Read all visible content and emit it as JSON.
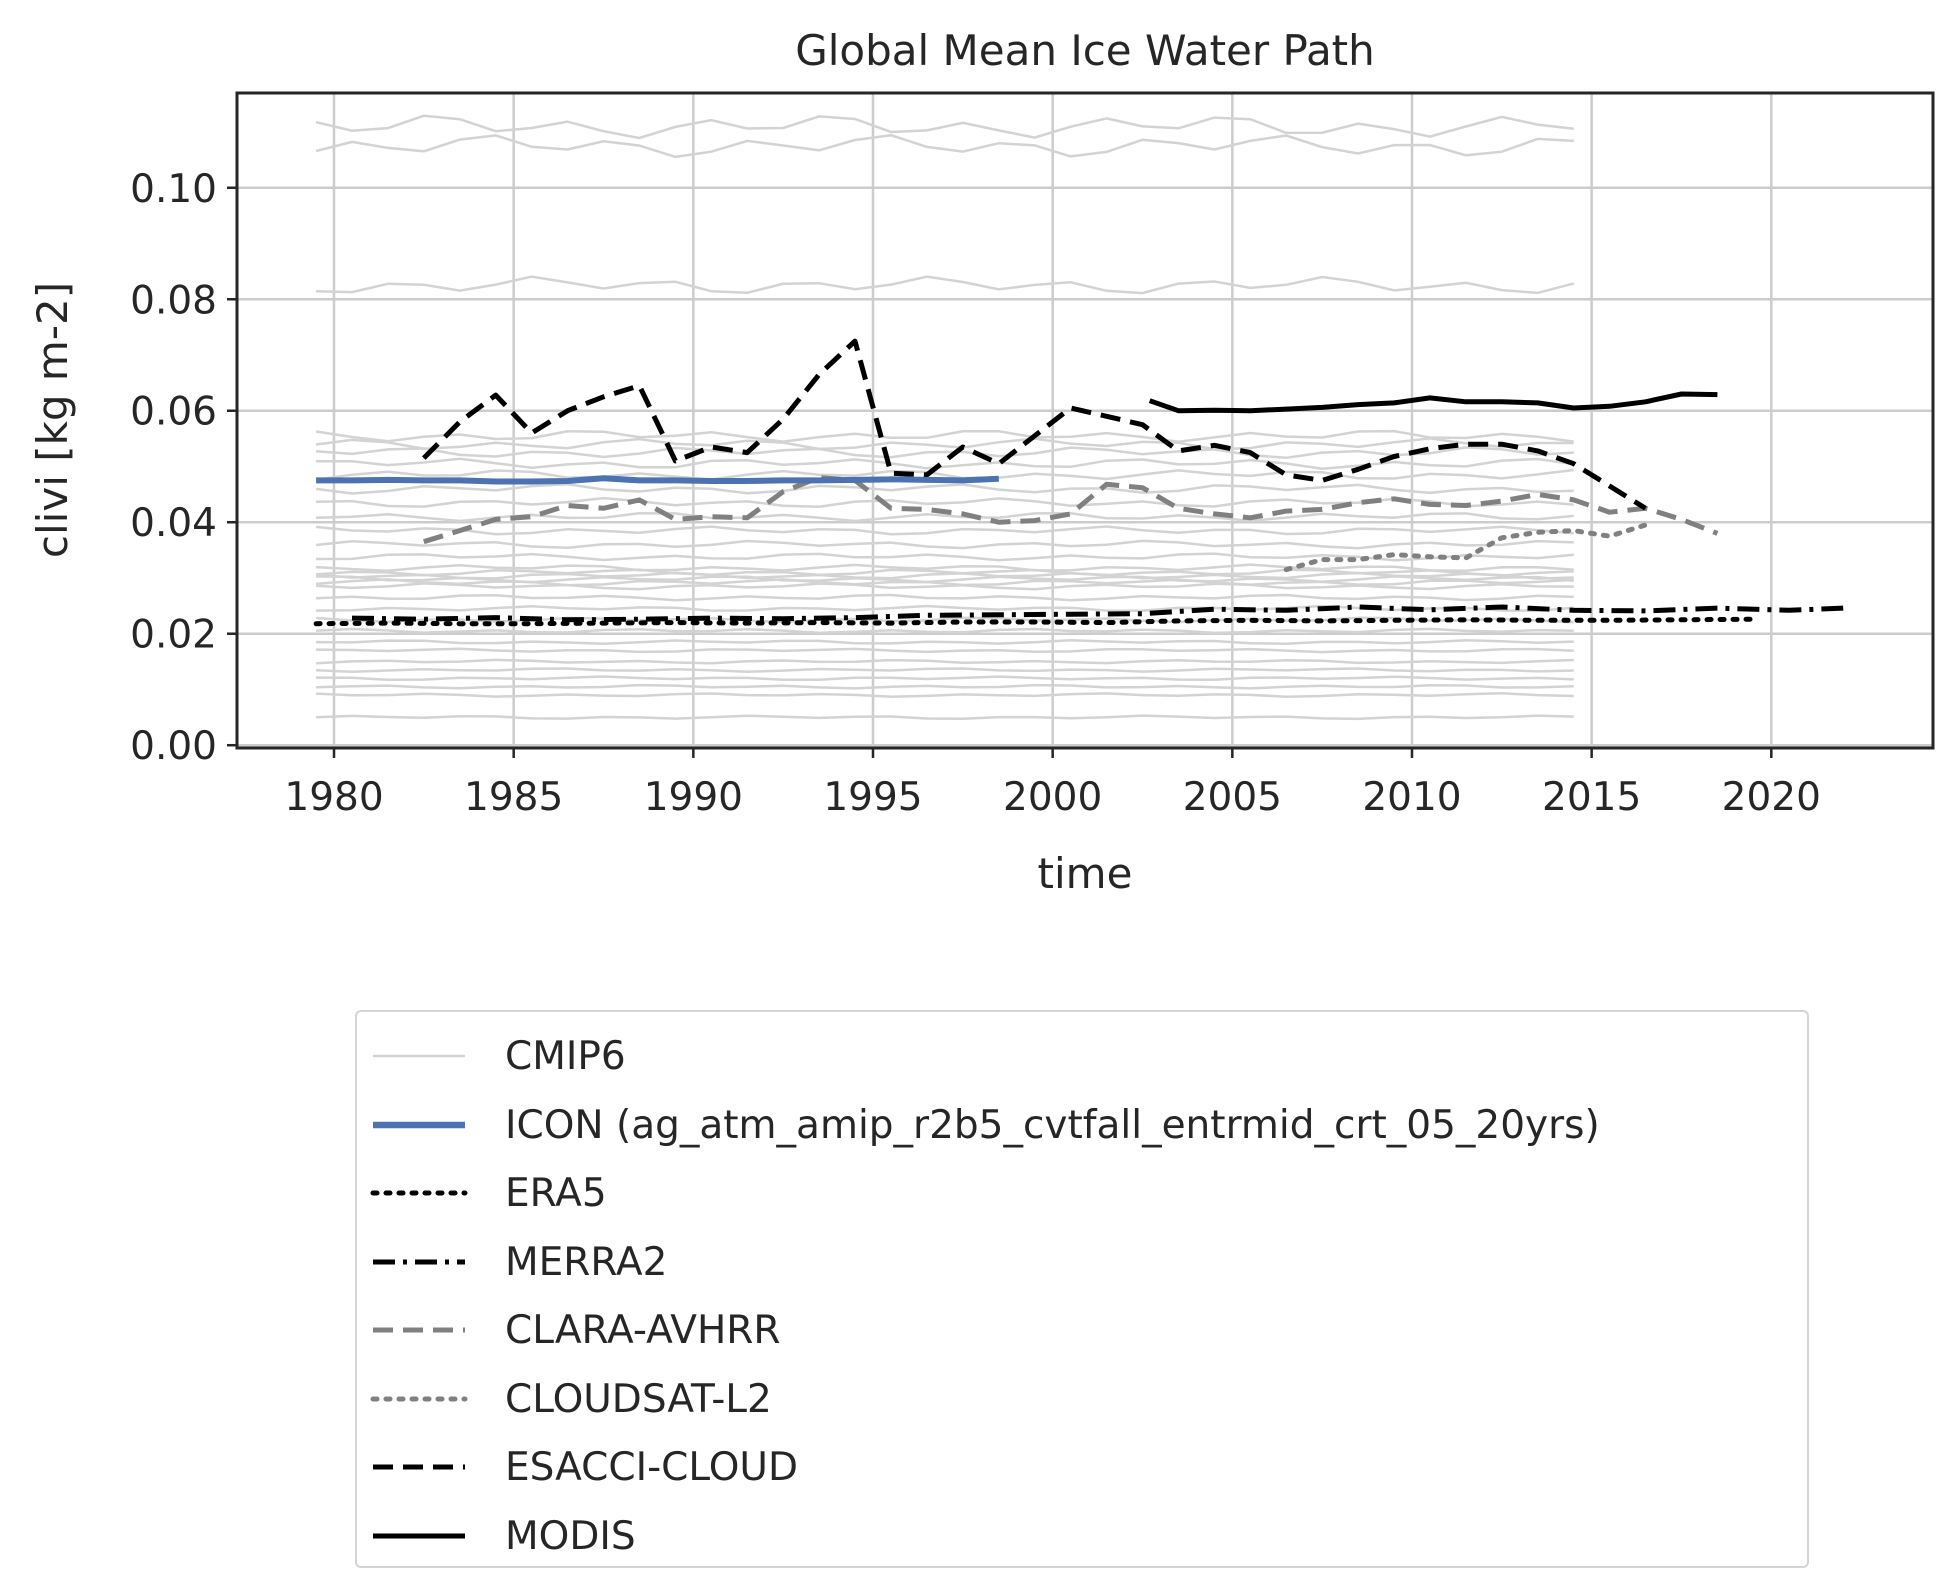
{
  "chart_data": {
    "type": "line",
    "title": "Global Mean Ice Water Path",
    "xlabel": "time",
    "ylabel": "clivi [kg m-2]",
    "xlim": [
      1977.3,
      2024.5
    ],
    "ylim": [
      -0.0005,
      0.117
    ],
    "xticks": [
      "1980",
      "1985",
      "1990",
      "1995",
      "2000",
      "2005",
      "2010",
      "2015",
      "2020"
    ],
    "yticks": [
      "0.00",
      "0.02",
      "0.04",
      "0.06",
      "0.08",
      "0.10"
    ],
    "grid": true,
    "legend_position": "below",
    "colors": {
      "cmip6": "#d3d3d3",
      "icon": "#4c72b0",
      "black": "#000000",
      "gray": "#808080"
    },
    "cmip6_levels": [
      0.005,
      0.009,
      0.0105,
      0.012,
      0.0135,
      0.015,
      0.017,
      0.0185,
      0.0205,
      0.0225,
      0.0245,
      0.0265,
      0.0285,
      0.0292,
      0.0298,
      0.0304,
      0.031,
      0.0318,
      0.0338,
      0.036,
      0.0385,
      0.041,
      0.0435,
      0.046,
      0.0485,
      0.0505,
      0.0525,
      0.054,
      0.0555,
      0.0825,
      0.1075,
      0.111
    ],
    "series": [
      {
        "name": "CMIP6",
        "style": "cmip6"
      },
      {
        "name": "ICON (ag_atm_amip_r2b5_cvtfall_entrmid_crt_05_20yrs)",
        "style": "icon",
        "x": [
          1979.5,
          1980.5,
          1981.5,
          1982.5,
          1983.5,
          1984.5,
          1985.5,
          1986.5,
          1987.5,
          1988.5,
          1989.5,
          1990.5,
          1991.5,
          1992.5,
          1993.5,
          1994.5,
          1995.5,
          1996.5,
          1997.5,
          1998.5
        ],
        "y": [
          0.0475,
          0.0475,
          0.0476,
          0.0475,
          0.0475,
          0.0473,
          0.0473,
          0.0474,
          0.0479,
          0.0475,
          0.0475,
          0.0474,
          0.0474,
          0.0475,
          0.0475,
          0.0476,
          0.0477,
          0.0476,
          0.0475,
          0.0478
        ]
      },
      {
        "name": "ERA5",
        "style": "era5",
        "x": [
          1979.5,
          1981.5,
          1983.5,
          1985.5,
          1987.5,
          1989.5,
          1991.5,
          1993.5,
          1995.5,
          1997.5,
          1999.5,
          2001.5,
          2003.5,
          2005.5,
          2007.5,
          2009.5,
          2011.5,
          2013.5,
          2015.5,
          2017.5,
          2019.5
        ],
        "y": [
          0.0218,
          0.0219,
          0.0218,
          0.0218,
          0.0219,
          0.022,
          0.0219,
          0.022,
          0.0219,
          0.0221,
          0.0221,
          0.022,
          0.0223,
          0.0224,
          0.0223,
          0.0224,
          0.0225,
          0.0224,
          0.0224,
          0.0225,
          0.0226
        ]
      },
      {
        "name": "MERRA2",
        "style": "merra2",
        "x": [
          1980.5,
          1982.5,
          1984.5,
          1986.5,
          1988.5,
          1990.5,
          1992.5,
          1994.5,
          1996.5,
          1998.5,
          2000.5,
          2002.5,
          2004.5,
          2006.5,
          2008.5,
          2010.5,
          2012.5,
          2014.5,
          2016.5,
          2018.5,
          2020.5,
          2022.0
        ],
        "y": [
          0.0228,
          0.0226,
          0.0229,
          0.0225,
          0.0226,
          0.0228,
          0.0227,
          0.0229,
          0.0233,
          0.0234,
          0.0235,
          0.0236,
          0.0244,
          0.0242,
          0.0248,
          0.0243,
          0.0248,
          0.0242,
          0.0241,
          0.0246,
          0.0242,
          0.0246
        ]
      },
      {
        "name": "CLARA-AVHRR",
        "style": "clara",
        "x": [
          1982.5,
          1983.5,
          1984.5,
          1985.5,
          1986.5,
          1987.5,
          1988.5,
          1989.5,
          1990.5,
          1991.5,
          1992.5,
          1993.5,
          1994.5,
          1995.5,
          1996.5,
          1997.5,
          1998.5,
          1999.5,
          2000.5,
          2001.5,
          2002.5,
          2003.5,
          2004.5,
          2005.5,
          2006.5,
          2007.5,
          2008.5,
          2009.5,
          2010.5,
          2011.5,
          2012.5,
          2013.5,
          2014.5,
          2015.5,
          2016.5,
          2017.5,
          2018.5
        ],
        "y": [
          0.0365,
          0.0385,
          0.0405,
          0.041,
          0.043,
          0.0425,
          0.044,
          0.0405,
          0.041,
          0.0408,
          0.0455,
          0.048,
          0.0475,
          0.0425,
          0.0423,
          0.0415,
          0.04,
          0.0403,
          0.0415,
          0.0468,
          0.0462,
          0.0425,
          0.0415,
          0.0408,
          0.042,
          0.0423,
          0.0435,
          0.0442,
          0.0432,
          0.043,
          0.0438,
          0.045,
          0.044,
          0.0418,
          0.0425,
          0.0405,
          0.038
        ]
      },
      {
        "name": "CLOUDSAT-L2",
        "style": "cloudsat",
        "x": [
          2006.5,
          2007.5,
          2008.5,
          2009.5,
          2010.5,
          2011.5,
          2012.5,
          2013.5,
          2014.5,
          2015.5,
          2016.5
        ],
        "y": [
          0.0315,
          0.0333,
          0.0333,
          0.0342,
          0.0338,
          0.0336,
          0.0372,
          0.0382,
          0.0385,
          0.0375,
          0.0395
        ]
      },
      {
        "name": "ESACCI-CLOUD",
        "style": "esacci",
        "x": [
          1982.5,
          1983.5,
          1984.5,
          1985.5,
          1986.5,
          1987.5,
          1988.5,
          1989.5,
          1990.5,
          1991.5,
          1992.5,
          1993.5,
          1994.5,
          1995.5,
          1996.5,
          1997.5,
          1998.5,
          1999.5,
          2000.5,
          2001.5,
          2002.5,
          2003.5,
          2004.5,
          2005.5,
          2006.5,
          2007.5,
          2008.5,
          2009.5,
          2010.5,
          2011.5,
          2012.5,
          2013.5,
          2014.5,
          2015.5,
          2016.5
        ],
        "y": [
          0.0515,
          0.058,
          0.0628,
          0.056,
          0.06,
          0.0625,
          0.0645,
          0.051,
          0.0535,
          0.0525,
          0.0585,
          0.0665,
          0.0725,
          0.0488,
          0.0485,
          0.0535,
          0.0505,
          0.0555,
          0.0605,
          0.059,
          0.0575,
          0.0528,
          0.0538,
          0.0525,
          0.0485,
          0.0475,
          0.0495,
          0.0518,
          0.0532,
          0.054,
          0.054,
          0.0528,
          0.0505,
          0.0465,
          0.0425
        ]
      },
      {
        "name": "MODIS",
        "style": "modis",
        "x": [
          2002.7,
          2003.5,
          2004.5,
          2005.5,
          2006.5,
          2007.5,
          2008.5,
          2009.5,
          2010.5,
          2011.5,
          2012.5,
          2013.5,
          2014.5,
          2015.5,
          2016.5,
          2017.5,
          2018.5
        ],
        "y": [
          0.0618,
          0.06,
          0.0601,
          0.06,
          0.0603,
          0.0606,
          0.0611,
          0.0614,
          0.0623,
          0.0616,
          0.0616,
          0.0614,
          0.0605,
          0.0608,
          0.0616,
          0.063,
          0.0629
        ]
      }
    ]
  }
}
